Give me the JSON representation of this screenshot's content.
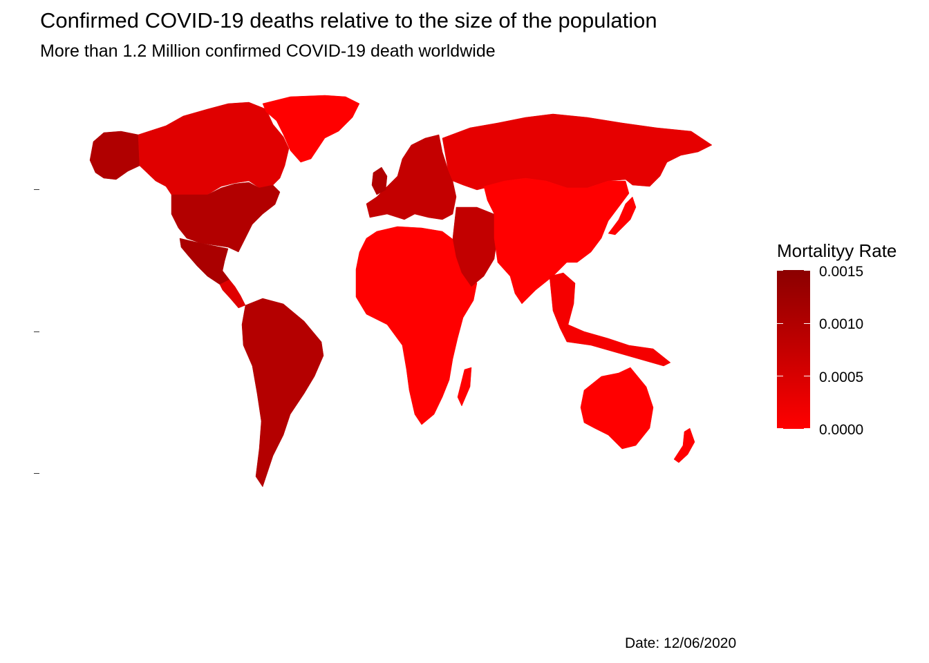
{
  "title": "Confirmed COVID-19 deaths relative to the size of the population",
  "subtitle": "More than 1.2 Million confirmed COVID-19 death worldwide",
  "caption": "Date: 12/06/2020",
  "legend": {
    "title": "Mortalityy Rate",
    "labels": [
      "0.0015",
      "0.0010",
      "0.0005",
      "0.0000"
    ],
    "low_color": "#ff0000",
    "high_color": "#8b0000"
  },
  "regions": [
    {
      "name": "alaska",
      "color": "#b00000"
    },
    {
      "name": "canada",
      "color": "#e00000"
    },
    {
      "name": "greenland",
      "color": "#ff0000"
    },
    {
      "name": "usa",
      "color": "#b20000"
    },
    {
      "name": "mexico",
      "color": "#aa0000"
    },
    {
      "name": "central-america",
      "color": "#e00000"
    },
    {
      "name": "south-america",
      "color": "#b40000"
    },
    {
      "name": "europe",
      "color": "#c40000"
    },
    {
      "name": "africa",
      "color": "#ff0000"
    },
    {
      "name": "russia",
      "color": "#e60000"
    },
    {
      "name": "middle-east",
      "color": "#c20000"
    },
    {
      "name": "asia",
      "color": "#ff0000"
    },
    {
      "name": "southeast-asia",
      "color": "#f50000"
    },
    {
      "name": "australia",
      "color": "#ff0000"
    },
    {
      "name": "new-zealand",
      "color": "#ff0000"
    },
    {
      "name": "madagascar",
      "color": "#ff0000"
    },
    {
      "name": "japan",
      "color": "#ff0000"
    },
    {
      "name": "british-isles",
      "color": "#b00000"
    }
  ]
}
